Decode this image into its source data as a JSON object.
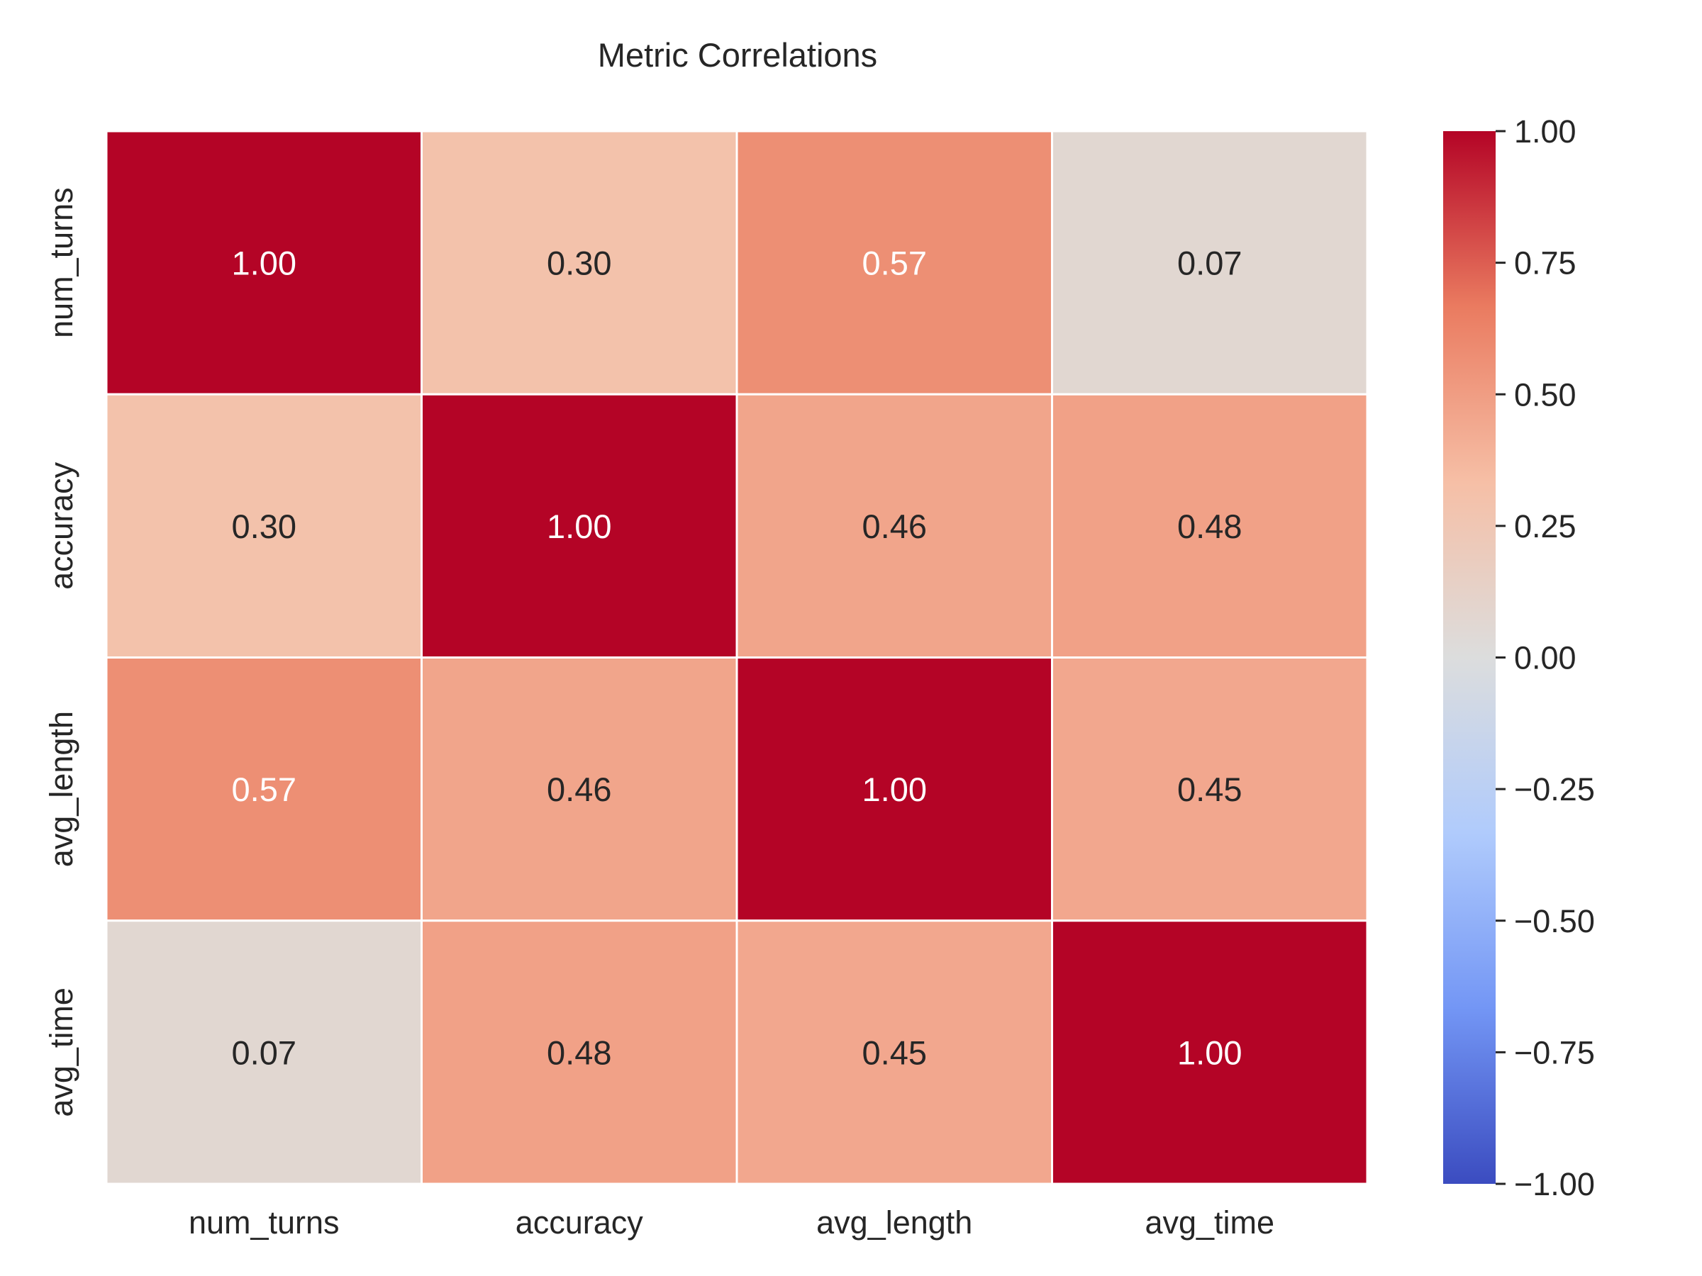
{
  "chart_data": {
    "type": "heatmap",
    "title": "Metric Correlations",
    "x_labels": [
      "num_turns",
      "accuracy",
      "avg_length",
      "avg_time"
    ],
    "y_labels": [
      "num_turns",
      "accuracy",
      "avg_length",
      "avg_time"
    ],
    "matrix": [
      [
        1.0,
        0.3,
        0.57,
        0.07
      ],
      [
        0.3,
        1.0,
        0.46,
        0.48
      ],
      [
        0.57,
        0.46,
        1.0,
        0.45
      ],
      [
        0.07,
        0.48,
        0.45,
        1.0
      ]
    ],
    "cell_labels": [
      [
        "1.00",
        "0.30",
        "0.57",
        "0.07"
      ],
      [
        "0.30",
        "1.00",
        "0.46",
        "0.48"
      ],
      [
        "0.57",
        "0.46",
        "1.00",
        "0.45"
      ],
      [
        "0.07",
        "0.48",
        "0.45",
        "1.00"
      ]
    ],
    "colormap": "coolwarm",
    "vmin": -1.0,
    "vmax": 1.0,
    "colorbar_ticks": [
      1.0,
      0.75,
      0.5,
      0.25,
      0.0,
      -0.25,
      -0.5,
      -0.75,
      -1.0
    ],
    "colorbar_tick_labels": [
      "1.00",
      "0.75",
      "0.50",
      "0.25",
      "0.00",
      "−0.25",
      "−0.50",
      "−0.75",
      "−1.00"
    ],
    "colormap_stops": [
      "#3b4cc0",
      "#7396f5",
      "#b0cbfc",
      "#dcdddd",
      "#f6bfa6",
      "#ea7b60",
      "#b40426"
    ],
    "annotation_colors": {
      "dark": "#262626",
      "light": "#ffffff"
    },
    "grid": false,
    "legend": "colorbar-right"
  }
}
